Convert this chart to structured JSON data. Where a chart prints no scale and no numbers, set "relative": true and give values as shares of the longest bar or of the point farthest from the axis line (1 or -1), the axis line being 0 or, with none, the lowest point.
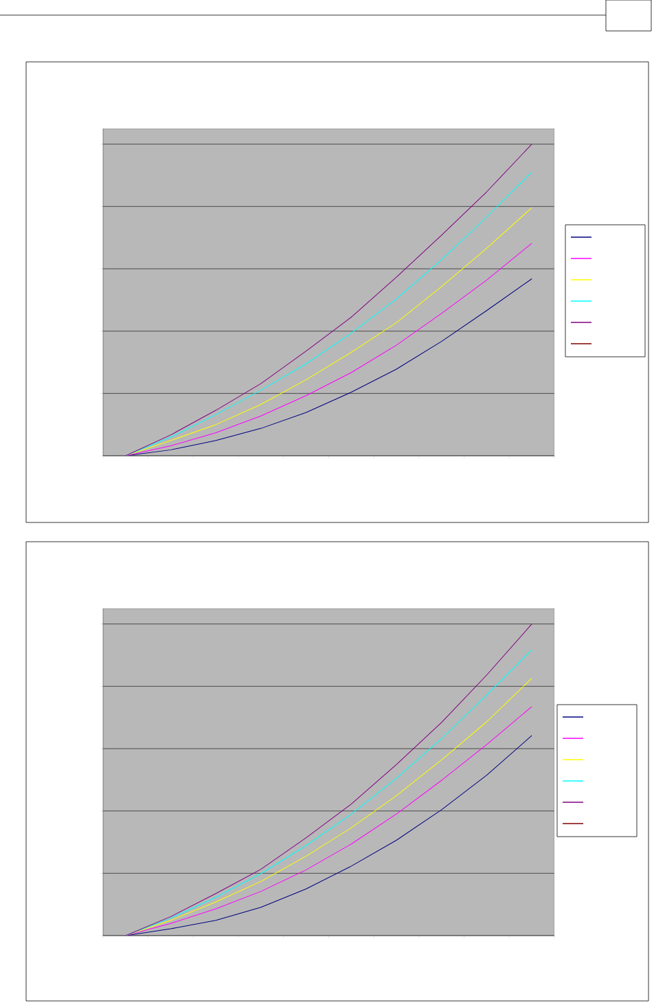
{
  "chart_data": [
    {
      "type": "line",
      "relative": true,
      "grid": "y",
      "marker": "none",
      "line_style": "solid",
      "categories": [
        null,
        null,
        null,
        null,
        null,
        null,
        null,
        null,
        null,
        null
      ],
      "series": [
        {
          "color": "#000080",
          "values": [
            0,
            0.019,
            0.049,
            0.088,
            0.139,
            0.204,
            0.278,
            0.367,
            0.466,
            0.568
          ]
        },
        {
          "color": "#ff00ff",
          "values": [
            0,
            0.032,
            0.074,
            0.128,
            0.193,
            0.267,
            0.355,
            0.457,
            0.564,
            0.682
          ]
        },
        {
          "color": "#ffff00",
          "values": [
            0,
            0.049,
            0.1,
            0.165,
            0.244,
            0.332,
            0.427,
            0.543,
            0.666,
            0.796
          ]
        },
        {
          "color": "#00ffff",
          "values": [
            0,
            0.06,
            0.132,
            0.211,
            0.295,
            0.394,
            0.503,
            0.629,
            0.766,
            0.91
          ]
        },
        {
          "color": "#800080",
          "values": [
            0,
            0.067,
            0.146,
            0.232,
            0.336,
            0.445,
            0.573,
            0.708,
            0.847,
            1
          ]
        },
        {
          "color": "#800000",
          "values": [
            null,
            null,
            null,
            null,
            null,
            null,
            null,
            null,
            null,
            null
          ]
        }
      ]
    },
    {
      "type": "line",
      "relative": true,
      "grid": "y",
      "marker": "none",
      "line_style": "solid",
      "categories": [
        null,
        null,
        null,
        null,
        null,
        null,
        null,
        null,
        null,
        null
      ],
      "series": [
        {
          "color": "#000080",
          "values": [
            0,
            0.022,
            0.049,
            0.091,
            0.15,
            0.223,
            0.306,
            0.404,
            0.515,
            0.642
          ]
        },
        {
          "color": "#ff00ff",
          "values": [
            0,
            0.039,
            0.086,
            0.142,
            0.211,
            0.294,
            0.39,
            0.498,
            0.613,
            0.735
          ]
        },
        {
          "color": "#ffff00",
          "values": [
            0,
            0.049,
            0.108,
            0.174,
            0.255,
            0.346,
            0.449,
            0.564,
            0.686,
            0.826
          ]
        },
        {
          "color": "#00ffff",
          "values": [
            0,
            0.056,
            0.123,
            0.199,
            0.289,
            0.39,
            0.505,
            0.632,
            0.772,
            0.917
          ]
        },
        {
          "color": "#800080",
          "values": [
            0,
            0.061,
            0.135,
            0.213,
            0.314,
            0.422,
            0.549,
            0.684,
            0.836,
            1
          ]
        },
        {
          "color": "#800000",
          "values": [
            null,
            null,
            null,
            null,
            null,
            null,
            null,
            null,
            null,
            null
          ]
        }
      ]
    }
  ]
}
